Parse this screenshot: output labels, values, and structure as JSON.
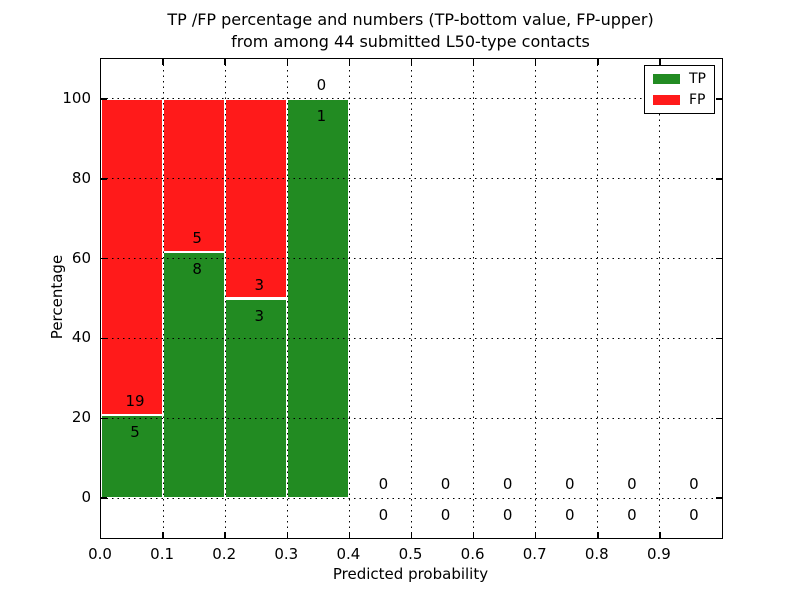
{
  "chart_data": {
    "type": "bar",
    "stacked": true,
    "title": "TP /FP percentage and numbers (TP-bottom value, FP-upper) from among 44 submitted L50-type contacts",
    "title_lines": [
      "TP /FP percentage and numbers (TP-bottom value, FP-upper)",
      "from among 44 submitted L50-type contacts"
    ],
    "xlabel": "Predicted probability",
    "ylabel": "Percentage",
    "xlim": [
      0.0,
      1.0
    ],
    "ylim": [
      -10,
      110
    ],
    "grid": {
      "visible": true,
      "style": "dotted"
    },
    "xticks": [
      {
        "v": 0.0,
        "label": "0.0"
      },
      {
        "v": 0.1,
        "label": "0.1"
      },
      {
        "v": 0.2,
        "label": "0.2"
      },
      {
        "v": 0.3,
        "label": "0.3"
      },
      {
        "v": 0.4,
        "label": "0.4"
      },
      {
        "v": 0.5,
        "label": "0.5"
      },
      {
        "v": 0.6,
        "label": "0.6"
      },
      {
        "v": 0.7,
        "label": "0.7"
      },
      {
        "v": 0.8,
        "label": "0.8"
      },
      {
        "v": 0.9,
        "label": "0.9"
      }
    ],
    "yticks": [
      {
        "v": 0,
        "label": "0"
      },
      {
        "v": 20,
        "label": "20"
      },
      {
        "v": 40,
        "label": "40"
      },
      {
        "v": 60,
        "label": "60"
      },
      {
        "v": 80,
        "label": "80"
      },
      {
        "v": 100,
        "label": "100"
      }
    ],
    "bin_width": 0.1,
    "bins": [
      {
        "x_start": 0.0,
        "x_end": 0.1,
        "tp_count": 5,
        "fp_count": 19,
        "tp_pct": 20.83,
        "fp_pct": 79.17
      },
      {
        "x_start": 0.1,
        "x_end": 0.2,
        "tp_count": 8,
        "fp_count": 5,
        "tp_pct": 61.54,
        "fp_pct": 38.46
      },
      {
        "x_start": 0.2,
        "x_end": 0.3,
        "tp_count": 3,
        "fp_count": 3,
        "tp_pct": 50.0,
        "fp_pct": 50.0
      },
      {
        "x_start": 0.3,
        "x_end": 0.4,
        "tp_count": 1,
        "fp_count": 0,
        "tp_pct": 100.0,
        "fp_pct": 0.0
      },
      {
        "x_start": 0.4,
        "x_end": 0.5,
        "tp_count": 0,
        "fp_count": 0,
        "tp_pct": 0.0,
        "fp_pct": 0.0
      },
      {
        "x_start": 0.5,
        "x_end": 0.6,
        "tp_count": 0,
        "fp_count": 0,
        "tp_pct": 0.0,
        "fp_pct": 0.0
      },
      {
        "x_start": 0.6,
        "x_end": 0.7,
        "tp_count": 0,
        "fp_count": 0,
        "tp_pct": 0.0,
        "fp_pct": 0.0
      },
      {
        "x_start": 0.7,
        "x_end": 0.8,
        "tp_count": 0,
        "fp_count": 0,
        "tp_pct": 0.0,
        "fp_pct": 0.0
      },
      {
        "x_start": 0.8,
        "x_end": 0.9,
        "tp_count": 0,
        "fp_count": 0,
        "tp_pct": 0.0,
        "fp_pct": 0.0
      },
      {
        "x_start": 0.9,
        "x_end": 1.0,
        "tp_count": 0,
        "fp_count": 0,
        "tp_pct": 0.0,
        "fp_pct": 0.0
      }
    ],
    "series": [
      {
        "name": "TP",
        "color": "#228b22"
      },
      {
        "name": "FP",
        "color": "#ff1a1a"
      }
    ],
    "legend": {
      "position": "upper right",
      "items": [
        {
          "label": "TP",
          "color": "#228b22"
        },
        {
          "label": "FP",
          "color": "#ff1a1a"
        }
      ]
    },
    "colors": {
      "tp": "#228b22",
      "fp": "#ff1a1a",
      "grid": "#000000",
      "background": "#ffffff"
    }
  }
}
